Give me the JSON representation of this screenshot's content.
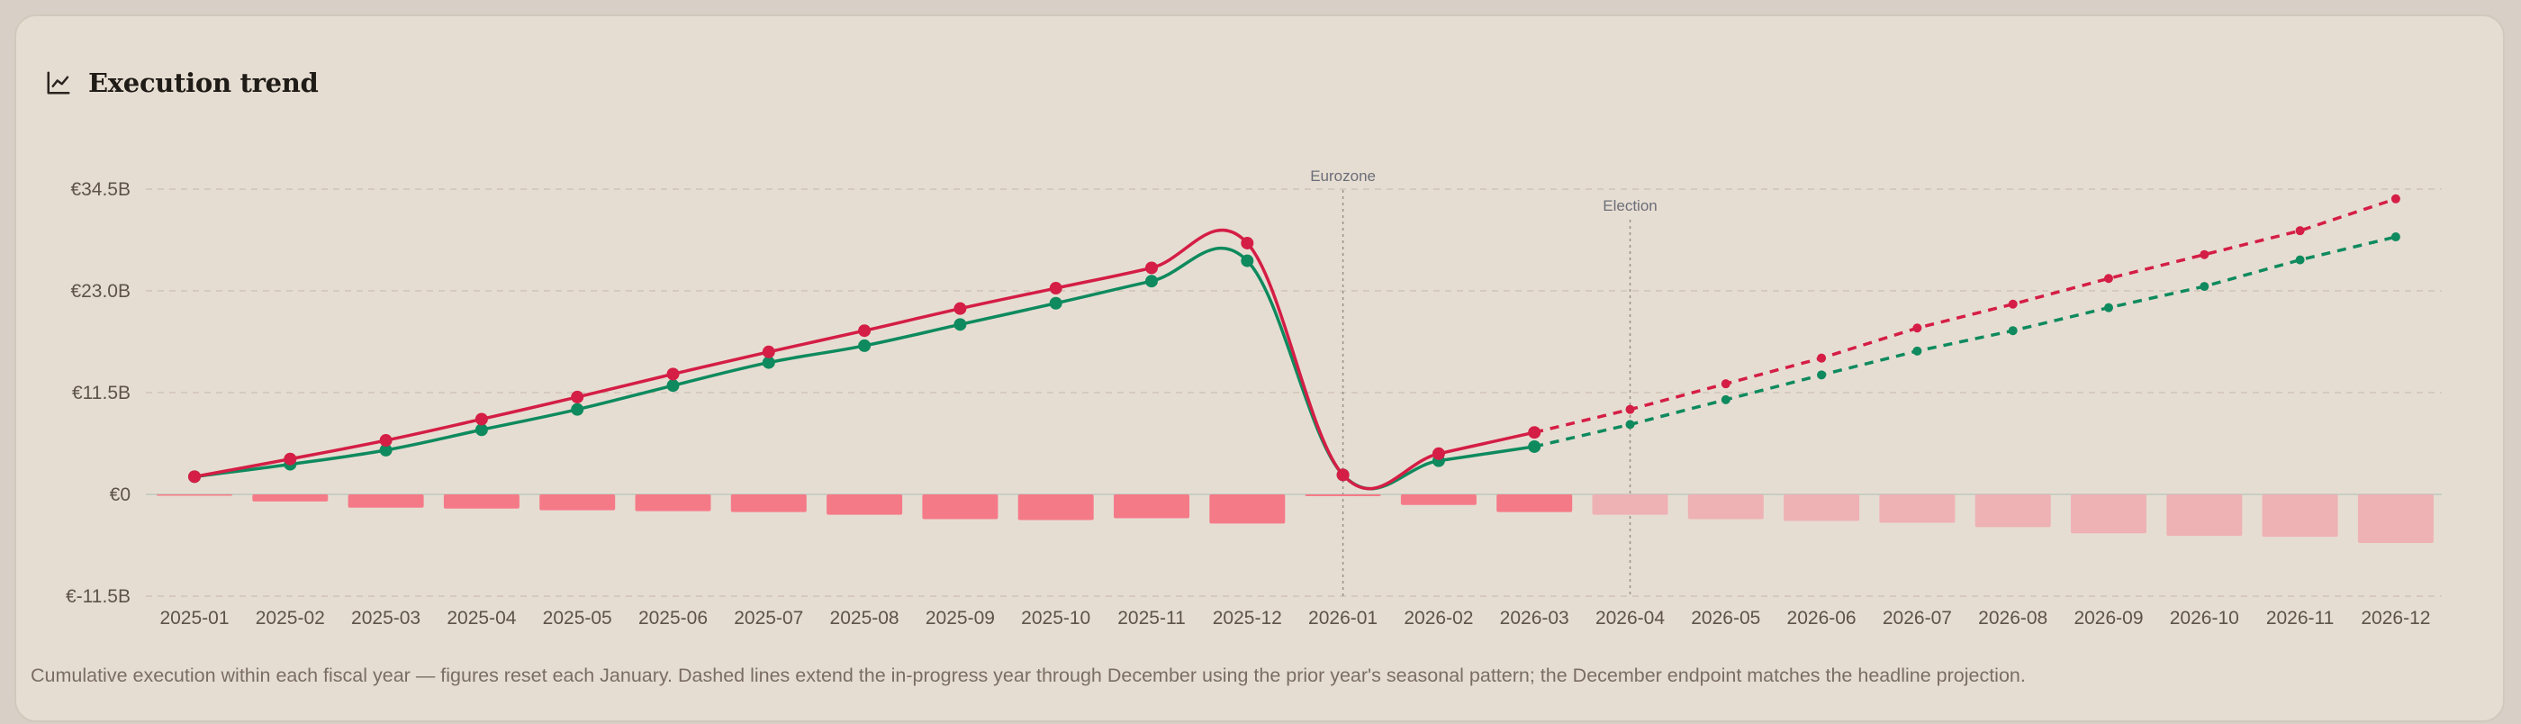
{
  "panel": {
    "title": "Execution trend",
    "icon": "line-chart-icon",
    "caption": "Cumulative execution within each fiscal year — figures reset each January. Dashed lines extend the in-progress year through December using the prior year's seasonal pattern; the December endpoint matches the headline projection."
  },
  "chart_data": {
    "type": "line",
    "categories": [
      "2025-01",
      "2025-02",
      "2025-03",
      "2025-04",
      "2025-05",
      "2025-06",
      "2025-07",
      "2025-08",
      "2025-09",
      "2025-10",
      "2025-11",
      "2025-12",
      "2026-01",
      "2026-02",
      "2026-03",
      "2026-04",
      "2026-05",
      "2026-06",
      "2026-07",
      "2026-08",
      "2026-09",
      "2026-10",
      "2026-11",
      "2026-12"
    ],
    "y_ticks": [
      {
        "value": 34.5,
        "label": "€34.5B"
      },
      {
        "value": 23.0,
        "label": "€23.0B"
      },
      {
        "value": 11.5,
        "label": "€11.5B"
      },
      {
        "value": 0,
        "label": "€0"
      },
      {
        "value": -11.5,
        "label": "€-11.5B"
      }
    ],
    "ylim": [
      -11.5,
      34.5
    ],
    "grid": true,
    "series": [
      {
        "kind": "line",
        "color": "#d41e45",
        "values": [
          2.0,
          4.0,
          6.1,
          8.5,
          11.0,
          13.6,
          16.1,
          18.5,
          21.0,
          23.3,
          25.6,
          28.4,
          2.2,
          4.6,
          7.0,
          9.6,
          12.5,
          15.4,
          18.8,
          21.5,
          24.4,
          27.1,
          29.8,
          33.4
        ],
        "projected_from_index": 14
      },
      {
        "kind": "line",
        "color": "#0e8a5e",
        "values": [
          2.0,
          3.4,
          5.0,
          7.3,
          9.6,
          12.3,
          14.9,
          16.8,
          19.2,
          21.6,
          24.1,
          26.4,
          2.2,
          3.8,
          5.4,
          7.9,
          10.7,
          13.5,
          16.2,
          18.5,
          21.1,
          23.5,
          26.5,
          29.1
        ],
        "projected_from_index": 14
      },
      {
        "kind": "bar",
        "color": "#f57a88",
        "projected_color": "#eeb1b4",
        "values": [
          0,
          -0.8,
          -1.5,
          -1.6,
          -1.8,
          -1.9,
          -2.0,
          -2.3,
          -2.8,
          -2.9,
          -2.7,
          -3.3,
          -0.2,
          -1.2,
          -2.0,
          -2.3,
          -2.8,
          -3.0,
          -3.2,
          -3.7,
          -4.4,
          -4.7,
          -4.8,
          -5.5
        ],
        "projected_from_index": 15
      }
    ],
    "annotations": [
      {
        "label": "Eurozone",
        "at_index": 12
      },
      {
        "label": "Election",
        "at_index": 15
      }
    ]
  }
}
